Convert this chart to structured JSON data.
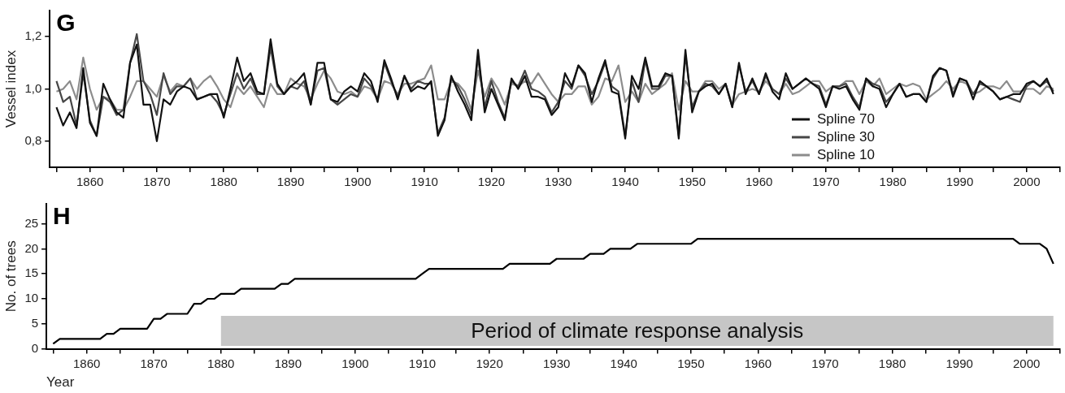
{
  "chart_data": [
    {
      "type": "line",
      "title": "G",
      "ylabel": "Vessel index",
      "legend": "bottom right",
      "marker": "none",
      "line_style": "solid",
      "grid": false,
      "x": [
        1855,
        1856,
        1857,
        1858,
        1859,
        1860,
        1861,
        1862,
        1863,
        1864,
        1865,
        1866,
        1867,
        1868,
        1869,
        1870,
        1871,
        1872,
        1873,
        1874,
        1875,
        1876,
        1877,
        1878,
        1879,
        1880,
        1881,
        1882,
        1883,
        1884,
        1885,
        1886,
        1887,
        1888,
        1889,
        1890,
        1891,
        1892,
        1893,
        1894,
        1895,
        1896,
        1897,
        1898,
        1899,
        1900,
        1901,
        1902,
        1903,
        1904,
        1905,
        1906,
        1907,
        1908,
        1909,
        1910,
        1911,
        1912,
        1913,
        1914,
        1915,
        1916,
        1917,
        1918,
        1919,
        1920,
        1921,
        1922,
        1923,
        1924,
        1925,
        1926,
        1927,
        1928,
        1929,
        1930,
        1931,
        1932,
        1933,
        1934,
        1935,
        1936,
        1937,
        1938,
        1939,
        1940,
        1941,
        1942,
        1943,
        1944,
        1945,
        1946,
        1947,
        1948,
        1949,
        1950,
        1951,
        1952,
        1953,
        1954,
        1955,
        1956,
        1957,
        1958,
        1959,
        1960,
        1961,
        1962,
        1963,
        1964,
        1965,
        1966,
        1967,
        1968,
        1969,
        1970,
        1971,
        1972,
        1973,
        1974,
        1975,
        1976,
        1977,
        1978,
        1979,
        1980,
        1981,
        1982,
        1983,
        1984,
        1985,
        1986,
        1987,
        1988,
        1989,
        1990,
        1991,
        1992,
        1993,
        1994,
        1995,
        1996,
        1997,
        1998,
        1999,
        2000,
        2001,
        2002,
        2003,
        2004
      ],
      "xlim": [
        1854,
        2005
      ],
      "xticks": [
        {
          "value": 1855,
          "label": null
        },
        1860,
        {
          "value": 1865,
          "label": null
        },
        1870,
        {
          "value": 1875,
          "label": null
        },
        1880,
        {
          "value": 1885,
          "label": null
        },
        1890,
        {
          "value": 1895,
          "label": null
        },
        1900,
        {
          "value": 1905,
          "label": null
        },
        1910,
        {
          "value": 1915,
          "label": null
        },
        1920,
        {
          "value": 1925,
          "label": null
        },
        1930,
        {
          "value": 1935,
          "label": null
        },
        1940,
        {
          "value": 1945,
          "label": null
        },
        1950,
        {
          "value": 1955,
          "label": null
        },
        1960,
        {
          "value": 1965,
          "label": null
        },
        1970,
        {
          "value": 1975,
          "label": null
        },
        1980,
        {
          "value": 1985,
          "label": null
        },
        1990,
        {
          "value": 1995,
          "label": null
        },
        2000,
        {
          "value": 2005,
          "label": null
        }
      ],
      "ylim": [
        0.7,
        1.3
      ],
      "yticks": [
        {
          "value": 0.8,
          "label": "0,8"
        },
        {
          "value": 1.0,
          "label": "1,0"
        },
        {
          "value": 1.2,
          "label": "1,2"
        }
      ],
      "series": [
        {
          "name": "Spline 70",
          "color": "#111111",
          "values": [
            0.93,
            0.86,
            0.91,
            0.85,
            1.08,
            0.87,
            0.82,
            1.02,
            0.96,
            0.91,
            0.89,
            1.1,
            1.17,
            0.94,
            0.94,
            0.8,
            0.96,
            0.94,
            0.99,
            1.01,
            1.0,
            0.96,
            0.97,
            0.98,
            0.98,
            0.89,
            1.0,
            1.12,
            1.03,
            1.06,
            0.99,
            0.98,
            1.19,
            1.02,
            0.98,
            1.01,
            1.03,
            1.06,
            0.94,
            1.1,
            1.1,
            0.96,
            0.95,
            0.99,
            1.01,
            0.99,
            1.06,
            1.03,
            0.95,
            1.11,
            1.04,
            0.96,
            1.05,
            0.99,
            1.01,
            1.0,
            1.03,
            0.82,
            0.88,
            1.05,
            0.99,
            0.94,
            0.88,
            1.15,
            0.91,
            1.0,
            0.94,
            0.88,
            1.04,
            1.0,
            1.05,
            0.97,
            0.97,
            0.96,
            0.9,
            0.93,
            1.06,
            1.01,
            1.09,
            1.06,
            0.95,
            1.04,
            1.11,
            0.99,
            0.98,
            0.81,
            1.05,
            1.0,
            1.12,
            1.01,
            1.01,
            1.06,
            1.05,
            0.81,
            1.15,
            0.91,
            0.99,
            1.01,
            1.02,
            0.98,
            1.02,
            0.93,
            1.1,
            0.98,
            1.04,
            0.98,
            1.06,
            0.99,
            0.96,
            1.06,
            1.0,
            1.02,
            1.04,
            1.02,
            1.0,
            0.93,
            1.01,
            1.0,
            1.01,
            0.96,
            0.92,
            1.04,
            1.01,
            1.0,
            0.93,
            0.98,
            1.02,
            0.97,
            0.98,
            0.98,
            0.95,
            1.05,
            1.08,
            1.07,
            0.97,
            1.04,
            1.03,
            0.96,
            1.03,
            1.01,
            0.99,
            0.96,
            0.97,
            0.98,
            0.98,
            1.02,
            1.03,
            1.01,
            1.04,
            0.98
          ]
        },
        {
          "name": "Spline 30",
          "color": "#474747",
          "values": [
            1.03,
            0.95,
            0.97,
            0.86,
            1.06,
            0.88,
            0.82,
            0.97,
            0.95,
            0.9,
            0.92,
            1.1,
            1.21,
            1.03,
            0.98,
            0.9,
            1.06,
            0.98,
            1.01,
            1.01,
            1.04,
            0.96,
            0.97,
            0.98,
            0.95,
            0.9,
            0.98,
            1.06,
            1.0,
            1.04,
            0.98,
            0.98,
            1.16,
            1.01,
            0.98,
            1.01,
            1.0,
            1.03,
            0.94,
            1.07,
            1.08,
            0.96,
            0.94,
            0.96,
            0.98,
            0.97,
            1.04,
            1.01,
            0.96,
            1.1,
            1.03,
            0.97,
            1.05,
            1.0,
            1.03,
            1.02,
            1.02,
            0.83,
            0.89,
            1.04,
            1.01,
            0.96,
            0.9,
            1.12,
            0.93,
            1.03,
            0.95,
            0.89,
            1.03,
            1.01,
            1.07,
            1.0,
            0.99,
            0.97,
            0.91,
            0.95,
            1.03,
            1.0,
            1.09,
            1.05,
            0.98,
            1.03,
            1.1,
            1.01,
            0.99,
            0.82,
            1.03,
            0.95,
            1.11,
            1.0,
            1.0,
            1.05,
            1.05,
            0.82,
            1.13,
            0.93,
            0.99,
            1.02,
            1.01,
            0.98,
            1.02,
            0.93,
            1.09,
            0.99,
            1.03,
            0.98,
            1.05,
            1.0,
            0.98,
            1.04,
            1.0,
            1.02,
            1.04,
            1.02,
            1.01,
            0.94,
            1.01,
            1.01,
            1.02,
            0.97,
            0.93,
            1.04,
            1.02,
            1.01,
            0.95,
            0.98,
            1.02,
            0.97,
            0.98,
            0.98,
            0.95,
            1.04,
            1.08,
            1.07,
            0.98,
            1.04,
            1.03,
            0.98,
            1.02,
            1.01,
            0.99,
            0.96,
            0.97,
            0.96,
            0.95,
            1.01,
            1.03,
            1.01,
            1.03,
            0.99
          ]
        },
        {
          "name": "Spline 10",
          "color": "#8c8c8c",
          "values": [
            0.99,
            1.0,
            1.03,
            0.96,
            1.12,
            1.0,
            0.92,
            0.97,
            0.96,
            0.92,
            0.92,
            0.97,
            1.03,
            1.03,
            1.0,
            0.97,
            1.05,
            0.99,
            1.02,
            1.01,
            1.04,
            1.0,
            1.03,
            1.05,
            1.01,
            0.96,
            0.93,
            1.01,
            0.98,
            1.01,
            0.97,
            0.93,
            1.02,
            0.98,
            0.98,
            1.04,
            1.02,
            1.01,
            0.96,
            1.02,
            1.07,
            1.04,
            0.99,
            0.98,
            0.99,
            0.97,
            1.01,
            1.0,
            0.96,
            1.03,
            1.02,
            0.98,
            1.02,
            1.02,
            1.03,
            1.04,
            1.09,
            0.96,
            0.96,
            1.03,
            1.02,
            0.99,
            0.92,
            1.07,
            0.97,
            1.04,
            1.0,
            0.94,
            1.02,
            1.01,
            1.03,
            1.02,
            1.06,
            1.02,
            0.98,
            0.95,
            0.98,
            0.98,
            1.01,
            1.01,
            0.94,
            0.97,
            1.04,
            1.03,
            1.09,
            0.95,
            0.99,
            0.95,
            1.02,
            0.98,
            1.0,
            1.02,
            1.06,
            0.92,
            1.03,
            0.99,
            0.99,
            1.03,
            1.03,
            1.0,
            1.02,
            0.94,
            0.98,
            0.99,
            1.0,
            0.99,
            1.03,
            1.0,
            0.98,
            1.02,
            0.98,
            0.99,
            1.01,
            1.03,
            1.03,
            0.99,
            1.01,
            1.01,
            1.03,
            1.03,
            0.98,
            1.03,
            1.01,
            1.04,
            0.98,
            1.0,
            1.02,
            1.01,
            1.02,
            1.01,
            0.96,
            0.98,
            1.0,
            1.03,
            1.0,
            1.03,
            1.02,
            0.98,
            0.99,
            1.01,
            1.01,
            1.0,
            1.03,
            0.99,
            0.99,
            1.0,
            1.0,
            0.98,
            1.01,
            1.0
          ]
        }
      ]
    },
    {
      "type": "line",
      "title": "H",
      "xlabel": "Year",
      "ylabel": "No. of trees",
      "legend": false,
      "marker": "none",
      "line_style": "solid",
      "grid": false,
      "x": [
        1855,
        1856,
        1857,
        1858,
        1859,
        1860,
        1861,
        1862,
        1863,
        1864,
        1865,
        1866,
        1867,
        1868,
        1869,
        1870,
        1871,
        1872,
        1873,
        1874,
        1875,
        1876,
        1877,
        1878,
        1879,
        1880,
        1881,
        1882,
        1883,
        1884,
        1885,
        1886,
        1887,
        1888,
        1889,
        1890,
        1891,
        1892,
        1893,
        1894,
        1895,
        1896,
        1897,
        1898,
        1899,
        1900,
        1901,
        1902,
        1903,
        1904,
        1905,
        1906,
        1907,
        1908,
        1909,
        1910,
        1911,
        1912,
        1913,
        1914,
        1915,
        1916,
        1917,
        1918,
        1919,
        1920,
        1921,
        1922,
        1923,
        1924,
        1925,
        1926,
        1927,
        1928,
        1929,
        1930,
        1931,
        1932,
        1933,
        1934,
        1935,
        1936,
        1937,
        1938,
        1939,
        1940,
        1941,
        1942,
        1943,
        1944,
        1945,
        1946,
        1947,
        1948,
        1949,
        1950,
        1951,
        1952,
        1953,
        1954,
        1955,
        1956,
        1957,
        1958,
        1959,
        1960,
        1961,
        1962,
        1963,
        1964,
        1965,
        1966,
        1967,
        1968,
        1969,
        1970,
        1971,
        1972,
        1973,
        1974,
        1975,
        1976,
        1977,
        1978,
        1979,
        1980,
        1981,
        1982,
        1983,
        1984,
        1985,
        1986,
        1987,
        1988,
        1989,
        1990,
        1991,
        1992,
        1993,
        1994,
        1995,
        1996,
        1997,
        1998,
        1999,
        2000,
        2001,
        2002,
        2003,
        2004
      ],
      "xlim": [
        1854,
        2005
      ],
      "xticks": [
        {
          "value": 1855,
          "label": null
        },
        1860,
        {
          "value": 1865,
          "label": null
        },
        1870,
        {
          "value": 1875,
          "label": null
        },
        1880,
        {
          "value": 1885,
          "label": null
        },
        1890,
        {
          "value": 1895,
          "label": null
        },
        1900,
        {
          "value": 1905,
          "label": null
        },
        1910,
        {
          "value": 1915,
          "label": null
        },
        1920,
        {
          "value": 1925,
          "label": null
        },
        1930,
        {
          "value": 1935,
          "label": null
        },
        1940,
        {
          "value": 1945,
          "label": null
        },
        1950,
        {
          "value": 1955,
          "label": null
        },
        1960,
        {
          "value": 1965,
          "label": null
        },
        1970,
        {
          "value": 1975,
          "label": null
        },
        1980,
        {
          "value": 1985,
          "label": null
        },
        1990,
        {
          "value": 1995,
          "label": null
        },
        2000,
        {
          "value": 2005,
          "label": null
        }
      ],
      "ylim": [
        0,
        29
      ],
      "yticks": [
        0,
        5,
        10,
        15,
        20,
        25
      ],
      "bands": [
        {
          "axis": "x",
          "from": 1880,
          "to": 2004,
          "label": "Period of climate response analysis",
          "color": "#c6c6c6"
        }
      ],
      "series": [
        {
          "color": "#000000",
          "values": [
            1,
            2,
            2,
            2,
            2,
            2,
            2,
            2,
            3,
            3,
            4,
            4,
            4,
            4,
            4,
            6,
            6,
            7,
            7,
            7,
            7,
            9,
            9,
            10,
            10,
            11,
            11,
            11,
            12,
            12,
            12,
            12,
            12,
            12,
            13,
            13,
            14,
            14,
            14,
            14,
            14,
            14,
            14,
            14,
            14,
            14,
            14,
            14,
            14,
            14,
            14,
            14,
            14,
            14,
            14,
            15,
            16,
            16,
            16,
            16,
            16,
            16,
            16,
            16,
            16,
            16,
            16,
            16,
            17,
            17,
            17,
            17,
            17,
            17,
            17,
            18,
            18,
            18,
            18,
            18,
            19,
            19,
            19,
            20,
            20,
            20,
            20,
            21,
            21,
            21,
            21,
            21,
            21,
            21,
            21,
            21,
            22,
            22,
            22,
            22,
            22,
            22,
            22,
            22,
            22,
            22,
            22,
            22,
            22,
            22,
            22,
            22,
            22,
            22,
            22,
            22,
            22,
            22,
            22,
            22,
            22,
            22,
            22,
            22,
            22,
            22,
            22,
            22,
            22,
            22,
            22,
            22,
            22,
            22,
            22,
            22,
            22,
            22,
            22,
            22,
            22,
            22,
            22,
            22,
            21,
            21,
            21,
            21,
            20,
            17
          ]
        }
      ]
    }
  ]
}
